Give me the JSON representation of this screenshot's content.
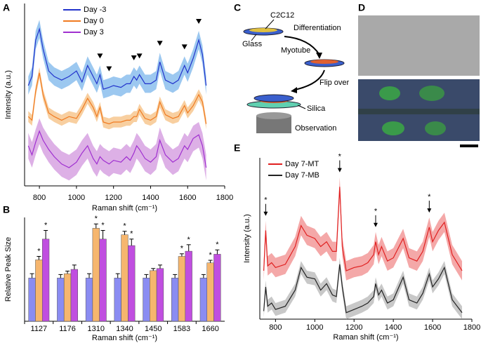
{
  "chart_data": [
    {
      "type": "line",
      "label": "A",
      "x_label": "Raman shift (cm⁻¹)",
      "y_label": "Intensity (a.u.)",
      "x": [
        740,
        760,
        780,
        800,
        820,
        850,
        880,
        920,
        960,
        1000,
        1030,
        1060,
        1090,
        1110,
        1127,
        1145,
        1176,
        1200,
        1240,
        1270,
        1290,
        1310,
        1325,
        1340,
        1370,
        1400,
        1430,
        1450,
        1480,
        1520,
        1550,
        1583,
        1600,
        1630,
        1660,
        1680,
        1700
      ],
      "series": [
        {
          "name": "Day -3",
          "color": "#2233cc",
          "band_color": "#9cc8f0",
          "band": 5,
          "values": [
            55,
            60,
            80,
            86,
            75,
            63,
            60,
            58,
            60,
            63,
            57,
            66,
            60,
            56,
            61,
            53,
            54,
            55,
            54,
            56,
            56,
            60,
            58,
            61,
            56,
            56,
            58,
            68,
            58,
            56,
            58,
            66,
            62,
            70,
            80,
            72,
            55
          ]
        },
        {
          "name": "Day 0",
          "color": "#f07a20",
          "band_color": "#f8cfa0",
          "band": 3,
          "values": [
            38,
            36,
            52,
            62,
            50,
            40,
            38,
            36,
            38,
            37,
            42,
            48,
            43,
            38,
            43,
            35,
            34,
            35,
            35,
            36,
            36,
            38,
            38,
            42,
            37,
            36,
            38,
            46,
            39,
            37,
            38,
            44,
            40,
            44,
            50,
            46,
            34
          ]
        },
        {
          "name": "Day 3",
          "color": "#a030d0",
          "band_color": "#ddb0e6",
          "band": 7,
          "values": [
            22,
            17,
            24,
            30,
            25,
            20,
            16,
            12,
            10,
            13,
            18,
            22,
            15,
            12,
            16,
            14,
            12,
            14,
            13,
            16,
            14,
            18,
            22,
            20,
            15,
            13,
            16,
            25,
            17,
            13,
            15,
            22,
            20,
            26,
            28,
            22,
            10
          ]
        }
      ],
      "xlim": [
        720,
        1800
      ],
      "ylim": [
        0,
        100
      ],
      "xticks": [
        800,
        1000,
        1200,
        1400,
        1600,
        1800
      ],
      "peak_markers": [
        1127,
        1176,
        1310,
        1340,
        1450,
        1583,
        1660
      ],
      "legend": "upper-left"
    },
    {
      "type": "bar",
      "label": "B",
      "x_label": "Raman shift (cm⁻¹)",
      "y_label": "Relative Peak Size",
      "categories": [
        "1127",
        "1176",
        "1310",
        "1340",
        "1450",
        "1583",
        "1660"
      ],
      "series": [
        {
          "color": "#8a8cf2",
          "values": [
            1.0,
            1.0,
            1.0,
            1.0,
            1.0,
            1.0,
            1.0
          ],
          "errors": [
            0.1,
            0.08,
            0.1,
            0.1,
            0.08,
            0.08,
            0.08
          ],
          "significance": [
            null,
            null,
            null,
            null,
            null,
            null,
            null
          ]
        },
        {
          "color": "#f6b66e",
          "values": [
            1.42,
            1.1,
            2.15,
            2.0,
            1.17,
            1.5,
            1.35
          ],
          "errors": [
            0.08,
            0.06,
            0.1,
            0.08,
            0.05,
            0.06,
            0.06
          ],
          "significance": [
            "*",
            null,
            "*",
            "*",
            null,
            "*",
            "*"
          ]
        },
        {
          "color": "#c04ee0",
          "values": [
            1.9,
            1.2,
            1.9,
            1.75,
            1.22,
            1.62,
            1.55
          ],
          "errors": [
            0.2,
            0.1,
            0.2,
            0.15,
            0.08,
            0.15,
            0.1
          ],
          "significance": [
            "*",
            null,
            "*",
            "*",
            null,
            "*",
            "*"
          ]
        }
      ],
      "ylim": [
        0,
        2.4
      ]
    },
    {
      "type": "line",
      "label": "E",
      "x_label": "Raman shift (cm⁻¹)",
      "y_label": "Intensity (a.u.)",
      "x": [
        740,
        750,
        760,
        780,
        800,
        850,
        900,
        930,
        960,
        1000,
        1030,
        1060,
        1090,
        1110,
        1127,
        1140,
        1160,
        1200,
        1240,
        1270,
        1300,
        1310,
        1325,
        1340,
        1370,
        1400,
        1450,
        1480,
        1520,
        1550,
        1583,
        1600,
        1630,
        1660,
        1700,
        1750
      ],
      "series": [
        {
          "name": "Day 7-MT",
          "color": "#e02020",
          "band_color": "#f4a8a8",
          "band": 6,
          "values": [
            30,
            55,
            33,
            35,
            32,
            34,
            45,
            58,
            52,
            50,
            45,
            48,
            42,
            42,
            82,
            45,
            30,
            32,
            33,
            35,
            40,
            48,
            40,
            45,
            36,
            38,
            50,
            38,
            36,
            42,
            57,
            48,
            55,
            60,
            40,
            30
          ]
        },
        {
          "name": "Day 7-MB",
          "color": "#222222",
          "band_color": "#c8c8c8",
          "band": 4,
          "values": [
            5,
            20,
            8,
            10,
            6,
            8,
            18,
            32,
            26,
            25,
            18,
            22,
            15,
            14,
            34,
            20,
            4,
            6,
            8,
            10,
            14,
            22,
            15,
            18,
            10,
            12,
            26,
            12,
            10,
            16,
            28,
            20,
            25,
            32,
            12,
            4
          ]
        }
      ],
      "xlim": [
        720,
        1800
      ],
      "ylim": [
        0,
        100
      ],
      "xticks": [
        800,
        1000,
        1200,
        1400,
        1600,
        1800
      ],
      "peak_markers": [
        750,
        1127,
        1310,
        1583
      ],
      "marker_label": "*",
      "legend": "upper-left"
    }
  ],
  "diagram": {
    "label": "C",
    "cell": "C2C12",
    "glass": "Glass",
    "step1": "Differentiation",
    "myotube": "Myotube",
    "step2": "Flip over",
    "silica": "Silica",
    "observation": "Observation"
  },
  "micrograph": {
    "label": "D"
  }
}
